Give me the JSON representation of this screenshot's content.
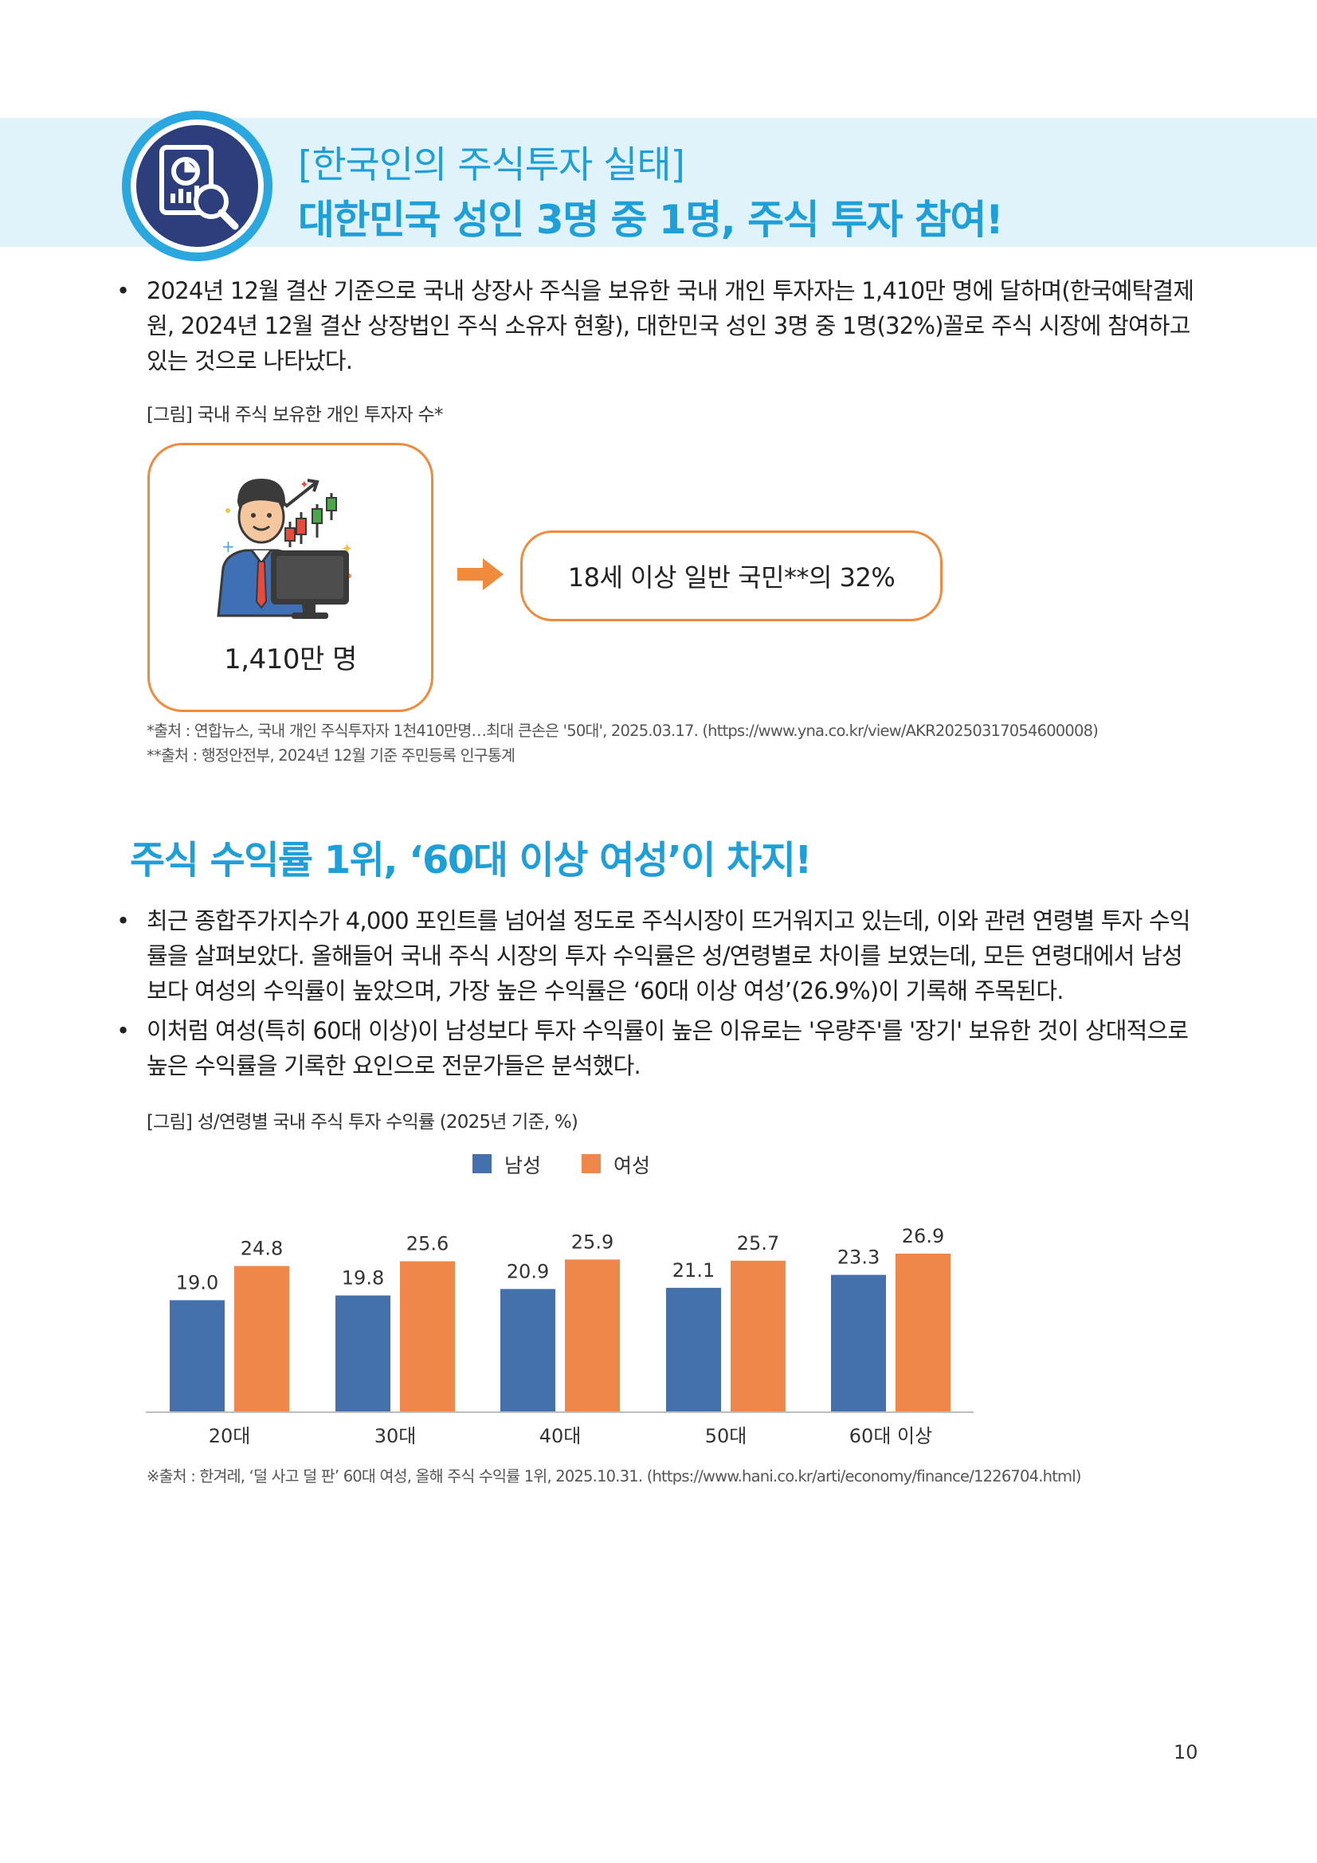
{
  "header": {
    "subtitle": "[한국인의 주식투자 실태]",
    "title": "대한민국 성인 3명 중 1명, 주식 투자 참여!",
    "emblem_icon": "chart-magnifier-icon"
  },
  "section1": {
    "bullet": "•",
    "paragraph": "2024년 12월 결산 기준으로 국내 상장사 주식을 보유한 국내 개인 투자자는 1,410만 명에 달하며(한국예탁결제원, 2024년 12월 결산 상장법인 주식 소유자 현황), 대한민국 성인 3명 중 1명(32%)꼴로 주식 시장에 참여하고 있는 것으로 나타났다.",
    "figure_caption": "[그림] 국내 주식 보유한 개인 투자자 수*",
    "box_left_label": "1,410만 명",
    "box_right_label": "18세 이상 일반 국민**의 32%",
    "investor_icon": "investor-at-computer-icon",
    "arrow_icon": "arrow-right-icon",
    "source1": "*출처 : 연합뉴스, 국내 개인 주식투자자 1천410만명…최대 큰손은 '50대', 2025.03.17. (https://www.yna.co.kr/view/AKR20250317054600008)",
    "source2": "**출처 : 행정안전부, 2024년 12월 기준 주민등록 인구통계"
  },
  "section2": {
    "title": "주식 수익률 1위, ‘60대 이상 여성’이 차지!",
    "bullet": "•",
    "paragraph1": "최근 종합주가지수가 4,000 포인트를 넘어설 정도로 주식시장이 뜨거워지고 있는데, 이와 관련 연령별 투자 수익률을 살펴보았다. 올해들어 국내 주식 시장의 투자 수익률은 성/연령별로 차이를 보였는데, 모든 연령대에서 남성보다 여성의 수익률이 높았으며, 가장 높은 수익률은 ‘60대 이상 여성’(26.9%)이 기록해 주목된다.",
    "paragraph2": "이처럼 여성(특히 60대 이상)이 남성보다 투자 수익률이 높은 이유로는 '우량주'를 '장기' 보유한 것이 상대적으로 높은 수익률을 기록한 요인으로 전문가들은 분석했다.",
    "figure_caption": "[그림] 성/연령별 국내 주식 투자 수익률 (2025년 기준, %)",
    "source": "※출처 : 한겨레, ‘덜 사고 덜 판’ 60대 여성, 올해 주식 수익률 1위, 2025.10.31. (https://www.hani.co.kr/arti/economy/finance/1226704.html)"
  },
  "chart_data": {
    "type": "bar",
    "title": "",
    "categories": [
      "20대",
      "30대",
      "40대",
      "50대",
      "60대 이상"
    ],
    "series": [
      {
        "name": "남성",
        "color": "#4470ab",
        "values": [
          19.0,
          19.8,
          20.9,
          21.1,
          23.3
        ],
        "labels": [
          "19.0",
          "19.8",
          "20.9",
          "21.1",
          "23.3"
        ]
      },
      {
        "name": "여성",
        "color": "#f0874a",
        "values": [
          24.8,
          25.6,
          25.9,
          25.7,
          26.9
        ],
        "labels": [
          "24.8",
          "25.6",
          "25.9",
          "25.7",
          "26.9"
        ]
      }
    ],
    "ylim": [
      0,
      30
    ],
    "grid": false,
    "legend": "top-center",
    "data_labels": true
  },
  "page_number": "10"
}
